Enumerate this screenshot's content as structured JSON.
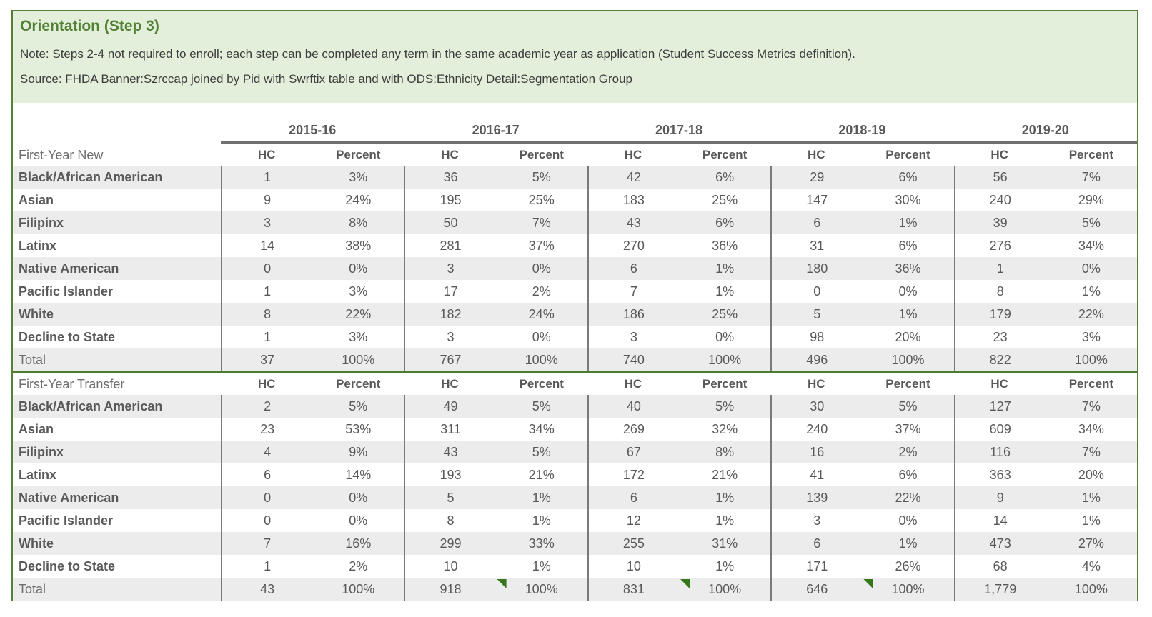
{
  "header": {
    "title": "Orientation (Step 3)",
    "note": "Note: Steps 2-4 not required to enroll; each step can be completed any term in the same academic year as application (Student Success Metrics definition).",
    "source": "Source: FHDA Banner:Szrccap joined by Pid with Swrftix table and with ODS:Ethnicity Detail:Segmentation Group"
  },
  "colors": {
    "accent_green": "#538135",
    "header_bg": "#e3efda",
    "stripe_gray": "#ececec",
    "rule_gray": "#707070",
    "text_gray": "#595959",
    "flag_green": "#35781b"
  },
  "years": [
    "2015-16",
    "2016-17",
    "2017-18",
    "2018-19",
    "2019-20"
  ],
  "col_headers": [
    "HC",
    "Percent"
  ],
  "sections": [
    {
      "label": "First-Year New",
      "rows": [
        {
          "label": "Black/African American",
          "bold": true,
          "values": [
            "1",
            "3%",
            "36",
            "5%",
            "42",
            "6%",
            "29",
            "6%",
            "56",
            "7%"
          ]
        },
        {
          "label": "Asian",
          "bold": true,
          "values": [
            "9",
            "24%",
            "195",
            "25%",
            "183",
            "25%",
            "147",
            "30%",
            "240",
            "29%"
          ]
        },
        {
          "label": "Filipinx",
          "bold": true,
          "values": [
            "3",
            "8%",
            "50",
            "7%",
            "43",
            "6%",
            "6",
            "1%",
            "39",
            "5%"
          ]
        },
        {
          "label": "Latinx",
          "bold": true,
          "values": [
            "14",
            "38%",
            "281",
            "37%",
            "270",
            "36%",
            "31",
            "6%",
            "276",
            "34%"
          ]
        },
        {
          "label": "Native American",
          "bold": true,
          "values": [
            "0",
            "0%",
            "3",
            "0%",
            "6",
            "1%",
            "180",
            "36%",
            "1",
            "0%"
          ]
        },
        {
          "label": "Pacific Islander",
          "bold": true,
          "values": [
            "1",
            "3%",
            "17",
            "2%",
            "7",
            "1%",
            "0",
            "0%",
            "8",
            "1%"
          ]
        },
        {
          "label": "White",
          "bold": true,
          "values": [
            "8",
            "22%",
            "182",
            "24%",
            "186",
            "25%",
            "5",
            "1%",
            "179",
            "22%"
          ]
        },
        {
          "label": "Decline to State",
          "bold": true,
          "values": [
            "1",
            "3%",
            "3",
            "0%",
            "3",
            "0%",
            "98",
            "20%",
            "23",
            "3%"
          ]
        },
        {
          "label": "Total",
          "bold": false,
          "values": [
            "37",
            "100%",
            "767",
            "100%",
            "740",
            "100%",
            "496",
            "100%",
            "822",
            "100%"
          ],
          "flag_cols": []
        }
      ]
    },
    {
      "label": "First-Year Transfer",
      "rows": [
        {
          "label": "Black/African American",
          "bold": true,
          "values": [
            "2",
            "5%",
            "49",
            "5%",
            "40",
            "5%",
            "30",
            "5%",
            "127",
            "7%"
          ]
        },
        {
          "label": "Asian",
          "bold": true,
          "values": [
            "23",
            "53%",
            "311",
            "34%",
            "269",
            "32%",
            "240",
            "37%",
            "609",
            "34%"
          ]
        },
        {
          "label": "Filipinx",
          "bold": true,
          "values": [
            "4",
            "9%",
            "43",
            "5%",
            "67",
            "8%",
            "16",
            "2%",
            "116",
            "7%"
          ]
        },
        {
          "label": "Latinx",
          "bold": true,
          "values": [
            "6",
            "14%",
            "193",
            "21%",
            "172",
            "21%",
            "41",
            "6%",
            "363",
            "20%"
          ]
        },
        {
          "label": "Native American",
          "bold": true,
          "values": [
            "0",
            "0%",
            "5",
            "1%",
            "6",
            "1%",
            "139",
            "22%",
            "9",
            "1%"
          ]
        },
        {
          "label": "Pacific Islander",
          "bold": true,
          "values": [
            "0",
            "0%",
            "8",
            "1%",
            "12",
            "1%",
            "3",
            "0%",
            "14",
            "1%"
          ]
        },
        {
          "label": "White",
          "bold": true,
          "values": [
            "7",
            "16%",
            "299",
            "33%",
            "255",
            "31%",
            "6",
            "1%",
            "473",
            "27%"
          ]
        },
        {
          "label": "Decline to State",
          "bold": true,
          "values": [
            "1",
            "2%",
            "10",
            "1%",
            "10",
            "1%",
            "171",
            "26%",
            "68",
            "4%"
          ]
        },
        {
          "label": "Total",
          "bold": false,
          "values": [
            "43",
            "100%",
            "918",
            "100%",
            "831",
            "100%",
            "646",
            "100%",
            "1,779",
            "100%"
          ],
          "flag_cols": [
            3,
            5,
            7
          ]
        }
      ]
    }
  ]
}
